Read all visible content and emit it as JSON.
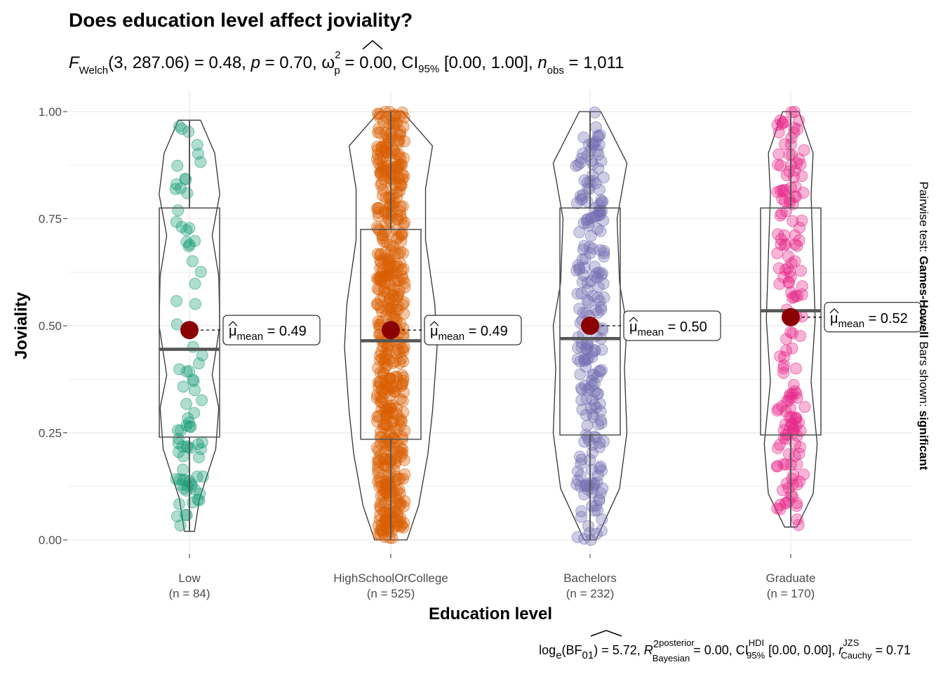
{
  "title": "Does education level affect joviality?",
  "subtitle": {
    "F": "F",
    "F_sub": "Welch",
    "args": "(3, 287.06)",
    "Fval": " = 0.48, ",
    "p": "p",
    "pval": " = 0.70, ",
    "omega": "ω",
    "omega_sup": "2",
    "omega_sub": "p",
    "omegaval": " = 0.00, ",
    "ci": "CI",
    "ci_sub": "95%",
    "cival": " [0.00, 1.00], ",
    "n": "n",
    "n_sub": "obs",
    "nval": " = 1,011"
  },
  "side_label": {
    "prefix": "Pairwise test: ",
    "test": "Games-Howell",
    "mid": " Bars shown: ",
    "shown": "significant"
  },
  "caption": {
    "log": "log",
    "log_sub": "e",
    "bf": "(BF",
    "bf_sub": "01",
    "bfval": ") = 5.72, ",
    "R": "R",
    "R_sup": "2",
    "R_sup2": "posterior",
    "R_sub": "Bayesian",
    "Rval": " = 0.00, ",
    "ci": "CI",
    "ci_sup": "HDI",
    "ci_sub": "95%",
    "cival": " [0.00, 0.00], ",
    "r": "r",
    "r_sup": "JZS",
    "r_sub": "Cauchy",
    "rval": " = 0.71"
  },
  "mean_label": {
    "mu": "μ",
    "sub": "mean"
  },
  "chart_data": {
    "type": "violin-box-scatter",
    "title": "Does education level affect joviality?",
    "xlabel": "Education level",
    "ylabel": "Joviality",
    "ylim": [
      0,
      1
    ],
    "yticks": [
      "0.00",
      "0.25",
      "0.50",
      "0.75",
      "1.00"
    ],
    "grid": true,
    "groups": [
      {
        "name": "Low",
        "n_label": "(n = 84)",
        "n": 84,
        "color": "#1b9e77",
        "min": 0.02,
        "q1": 0.24,
        "median": 0.445,
        "q3": 0.775,
        "max": 0.98,
        "mean": 0.49,
        "mean_label": " = 0.49"
      },
      {
        "name": "HighSchoolOrCollege",
        "n_label": "(n = 525)",
        "n": 525,
        "color": "#d95f02",
        "min": 0.0,
        "q1": 0.235,
        "median": 0.465,
        "q3": 0.725,
        "max": 1.0,
        "mean": 0.49,
        "mean_label": " = 0.49"
      },
      {
        "name": "Bachelors",
        "n_label": "(n = 232)",
        "n": 232,
        "color": "#7570b3",
        "min": 0.0,
        "q1": 0.245,
        "median": 0.47,
        "q3": 0.775,
        "max": 1.0,
        "mean": 0.5,
        "mean_label": " = 0.50"
      },
      {
        "name": "Graduate",
        "n_label": "(n = 170)",
        "n": 170,
        "color": "#e7298a",
        "min": 0.03,
        "q1": 0.245,
        "median": 0.535,
        "q3": 0.775,
        "max": 1.0,
        "mean": 0.52,
        "mean_label": " = 0.52"
      }
    ]
  }
}
